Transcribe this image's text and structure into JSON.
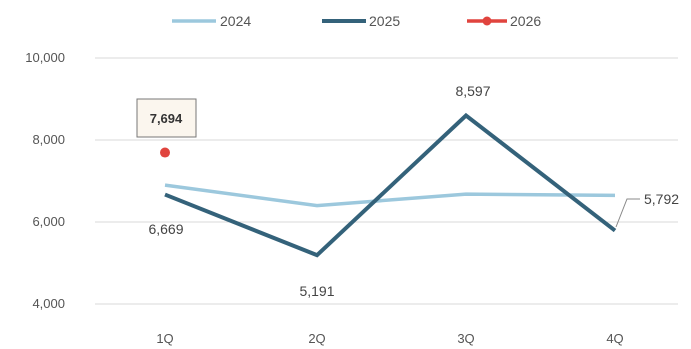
{
  "chart_data": {
    "type": "line",
    "title": "",
    "xlabel": "",
    "ylabel": "",
    "categories": [
      "1Q",
      "2Q",
      "3Q",
      "4Q"
    ],
    "ylim": [
      4000,
      10000
    ],
    "yticks": [
      4000,
      6000,
      8000,
      10000
    ],
    "ytick_labels": [
      "4,000",
      "6,000",
      "8,000",
      "10,000"
    ],
    "grid": true,
    "legend_position": "top",
    "series": [
      {
        "name": "2024",
        "color": "#9cc8dd",
        "values": [
          6900,
          6400,
          6680,
          6650
        ],
        "labels": [
          null,
          null,
          null,
          null
        ]
      },
      {
        "name": "2025",
        "color": "#34627a",
        "values": [
          6669,
          5191,
          8597,
          5792
        ],
        "labels": [
          "6,669",
          "5,191",
          "8,597",
          "5,792"
        ]
      },
      {
        "name": "2026",
        "color": "#e0443e",
        "values": [
          7694,
          null,
          null,
          null
        ],
        "labels": [
          "7,694",
          null,
          null,
          null
        ]
      }
    ]
  }
}
